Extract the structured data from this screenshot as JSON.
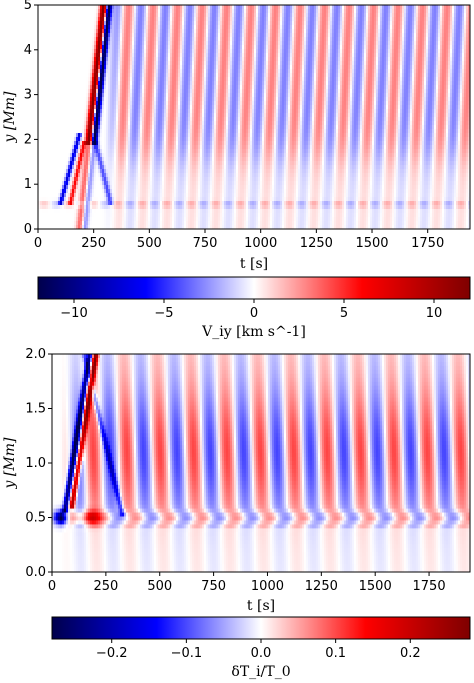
{
  "chart_data": [
    {
      "type": "heatmap",
      "xlabel": "t [s]",
      "ylabel": "y [Mm]",
      "xlim": [
        0,
        1940
      ],
      "ylim": [
        0,
        5
      ],
      "xticks": [
        "0",
        "250",
        "500",
        "750",
        "1000",
        "1250",
        "1500",
        "1750"
      ],
      "xtick_values": [
        0,
        250,
        500,
        750,
        1000,
        1250,
        1500,
        1750
      ],
      "yticks": [
        "0",
        "1",
        "2",
        "3",
        "4",
        "5"
      ],
      "ytick_values": [
        0,
        1,
        2,
        3,
        4,
        5
      ],
      "colormap": "seismic",
      "colorbar": {
        "label": "V_iy [km s^-1]",
        "range": [
          -12,
          12
        ],
        "ticks": [
          "−10",
          "−5",
          "0",
          "5",
          "10"
        ],
        "tick_values": [
          -10,
          -5,
          0,
          5,
          10
        ]
      },
      "features": {
        "oscillation_period_s": 110,
        "oscillation_onset_s": 290,
        "max_amplitude": 12,
        "oscillation_amplitude": 3
      }
    },
    {
      "type": "heatmap",
      "xlabel": "t [s]",
      "ylabel": "y [Mm]",
      "xlim": [
        0,
        1940
      ],
      "ylim": [
        0,
        2
      ],
      "xticks": [
        "0",
        "250",
        "500",
        "750",
        "1000",
        "1250",
        "1500",
        "1750"
      ],
      "xtick_values": [
        0,
        250,
        500,
        750,
        1000,
        1250,
        1500,
        1750
      ],
      "yticks": [
        "0.0",
        "0.5",
        "1.0",
        "1.5",
        "2.0"
      ],
      "ytick_values": [
        0,
        0.5,
        1.0,
        1.5,
        2.0
      ],
      "colormap": "seismic",
      "colorbar": {
        "label": "δT_i/T_0",
        "range": [
          -0.28,
          0.28
        ],
        "ticks": [
          "−0.2",
          "−0.1",
          "0.0",
          "0.1",
          "0.2"
        ],
        "tick_values": [
          -0.2,
          -0.1,
          0.0,
          0.1,
          0.2
        ]
      },
      "features": {
        "oscillation_period_s": 155,
        "oscillation_onset_s": 40,
        "max_amplitude": 0.28,
        "oscillation_amplitude": 0.06
      }
    }
  ]
}
